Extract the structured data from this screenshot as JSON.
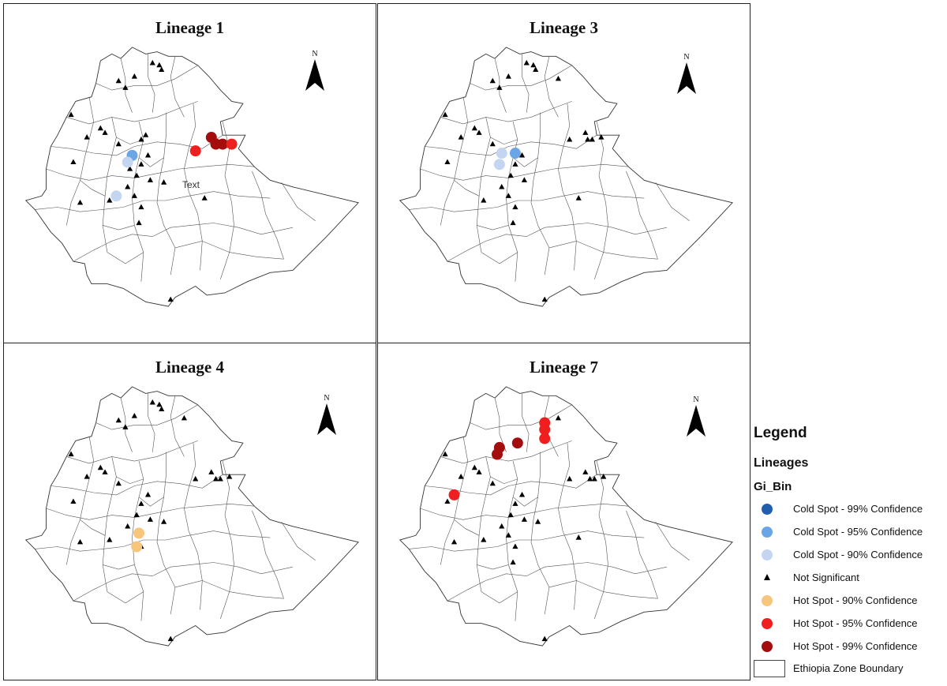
{
  "panels": [
    {
      "id": "p1",
      "title": "Lineage 1",
      "annotation": "Text",
      "points": [
        {
          "cls": "ns",
          "lon": 38.8,
          "lat": 14.2
        },
        {
          "cls": "ns",
          "lon": 39.2,
          "lat": 13.9
        },
        {
          "cls": "ns",
          "lon": 39.1,
          "lat": 14.1
        },
        {
          "cls": "ns",
          "lon": 37.3,
          "lat": 13.4
        },
        {
          "cls": "ns",
          "lon": 37.6,
          "lat": 13.1
        },
        {
          "cls": "ns",
          "lon": 38.0,
          "lat": 13.6
        },
        {
          "cls": "ns",
          "lon": 35.2,
          "lat": 11.9
        },
        {
          "cls": "ns",
          "lon": 36.5,
          "lat": 11.3
        },
        {
          "cls": "ns",
          "lon": 35.9,
          "lat": 10.9
        },
        {
          "cls": "ns",
          "lon": 36.7,
          "lat": 11.1
        },
        {
          "cls": "ns",
          "lon": 37.3,
          "lat": 10.6
        },
        {
          "cls": "ns",
          "lon": 38.5,
          "lat": 11.0
        },
        {
          "cls": "ns",
          "lon": 38.3,
          "lat": 10.8
        },
        {
          "cls": "ns",
          "lon": 35.3,
          "lat": 9.8
        },
        {
          "cls": "ns",
          "lon": 37.8,
          "lat": 9.5
        },
        {
          "cls": "ns",
          "lon": 38.1,
          "lat": 9.2
        },
        {
          "cls": "ns",
          "lon": 38.3,
          "lat": 9.7
        },
        {
          "cls": "ns",
          "lon": 38.7,
          "lat": 9.0
        },
        {
          "cls": "ns",
          "lon": 37.7,
          "lat": 8.7
        },
        {
          "cls": "ns",
          "lon": 38.0,
          "lat": 8.3
        },
        {
          "cls": "ns",
          "lon": 38.3,
          "lat": 7.8
        },
        {
          "cls": "ns",
          "lon": 36.9,
          "lat": 8.1
        },
        {
          "cls": "ns",
          "lon": 35.6,
          "lat": 8.0
        },
        {
          "cls": "ns",
          "lon": 39.3,
          "lat": 8.9
        },
        {
          "cls": "ns",
          "lon": 41.1,
          "lat": 8.2
        },
        {
          "cls": "ns",
          "lon": 38.2,
          "lat": 7.1
        },
        {
          "cls": "ns",
          "lon": 38.6,
          "lat": 10.1
        },
        {
          "cls": "ns",
          "lon": 39.6,
          "lat": 3.7
        },
        {
          "cls": "cold95",
          "lon": 37.9,
          "lat": 10.1
        },
        {
          "cls": "cold90",
          "lon": 37.7,
          "lat": 9.8
        },
        {
          "cls": "cold90",
          "lon": 37.2,
          "lat": 8.3
        },
        {
          "cls": "hot95",
          "lon": 40.7,
          "lat": 10.3
        },
        {
          "cls": "hot99",
          "lon": 41.4,
          "lat": 10.9
        },
        {
          "cls": "hot99",
          "lon": 41.6,
          "lat": 10.6
        },
        {
          "cls": "hot99",
          "lon": 41.9,
          "lat": 10.6
        },
        {
          "cls": "hot95",
          "lon": 42.3,
          "lat": 10.6
        }
      ]
    },
    {
      "id": "p3",
      "title": "Lineage 3",
      "points": [
        {
          "cls": "ns",
          "lon": 38.8,
          "lat": 14.2
        },
        {
          "cls": "ns",
          "lon": 39.2,
          "lat": 13.9
        },
        {
          "cls": "ns",
          "lon": 39.1,
          "lat": 14.1
        },
        {
          "cls": "ns",
          "lon": 37.3,
          "lat": 13.4
        },
        {
          "cls": "ns",
          "lon": 37.6,
          "lat": 13.1
        },
        {
          "cls": "ns",
          "lon": 38.0,
          "lat": 13.6
        },
        {
          "cls": "ns",
          "lon": 40.2,
          "lat": 13.5
        },
        {
          "cls": "ns",
          "lon": 35.2,
          "lat": 11.9
        },
        {
          "cls": "ns",
          "lon": 36.5,
          "lat": 11.3
        },
        {
          "cls": "ns",
          "lon": 35.9,
          "lat": 10.9
        },
        {
          "cls": "ns",
          "lon": 36.7,
          "lat": 11.1
        },
        {
          "cls": "ns",
          "lon": 37.3,
          "lat": 10.6
        },
        {
          "cls": "ns",
          "lon": 35.3,
          "lat": 9.8
        },
        {
          "cls": "ns",
          "lon": 38.1,
          "lat": 9.2
        },
        {
          "cls": "ns",
          "lon": 38.3,
          "lat": 9.7
        },
        {
          "cls": "ns",
          "lon": 38.7,
          "lat": 9.0
        },
        {
          "cls": "ns",
          "lon": 37.7,
          "lat": 8.7
        },
        {
          "cls": "ns",
          "lon": 38.0,
          "lat": 8.3
        },
        {
          "cls": "ns",
          "lon": 38.3,
          "lat": 7.8
        },
        {
          "cls": "ns",
          "lon": 36.9,
          "lat": 8.1
        },
        {
          "cls": "ns",
          "lon": 41.1,
          "lat": 8.2
        },
        {
          "cls": "ns",
          "lon": 38.2,
          "lat": 7.1
        },
        {
          "cls": "ns",
          "lon": 38.6,
          "lat": 10.1
        },
        {
          "cls": "ns",
          "lon": 40.7,
          "lat": 10.8
        },
        {
          "cls": "ns",
          "lon": 41.4,
          "lat": 11.1
        },
        {
          "cls": "ns",
          "lon": 41.5,
          "lat": 10.8
        },
        {
          "cls": "ns",
          "lon": 41.7,
          "lat": 10.8
        },
        {
          "cls": "ns",
          "lon": 42.1,
          "lat": 10.9
        },
        {
          "cls": "ns",
          "lon": 39.6,
          "lat": 3.7
        },
        {
          "cls": "cold90",
          "lon": 37.7,
          "lat": 10.2
        },
        {
          "cls": "cold95",
          "lon": 38.3,
          "lat": 10.2
        },
        {
          "cls": "cold90",
          "lon": 37.6,
          "lat": 9.7
        }
      ]
    },
    {
      "id": "p4",
      "title": "Lineage 4",
      "points": [
        {
          "cls": "ns",
          "lon": 38.8,
          "lat": 14.2
        },
        {
          "cls": "ns",
          "lon": 39.2,
          "lat": 13.9
        },
        {
          "cls": "ns",
          "lon": 39.1,
          "lat": 14.1
        },
        {
          "cls": "ns",
          "lon": 37.3,
          "lat": 13.4
        },
        {
          "cls": "ns",
          "lon": 37.6,
          "lat": 13.1
        },
        {
          "cls": "ns",
          "lon": 38.0,
          "lat": 13.6
        },
        {
          "cls": "ns",
          "lon": 40.2,
          "lat": 13.5
        },
        {
          "cls": "ns",
          "lon": 35.2,
          "lat": 11.9
        },
        {
          "cls": "ns",
          "lon": 36.5,
          "lat": 11.3
        },
        {
          "cls": "ns",
          "lon": 35.9,
          "lat": 10.9
        },
        {
          "cls": "ns",
          "lon": 36.7,
          "lat": 11.1
        },
        {
          "cls": "ns",
          "lon": 37.3,
          "lat": 10.6
        },
        {
          "cls": "ns",
          "lon": 35.3,
          "lat": 9.8
        },
        {
          "cls": "ns",
          "lon": 38.1,
          "lat": 9.2
        },
        {
          "cls": "ns",
          "lon": 38.3,
          "lat": 9.7
        },
        {
          "cls": "ns",
          "lon": 38.7,
          "lat": 9.0
        },
        {
          "cls": "ns",
          "lon": 37.7,
          "lat": 8.7
        },
        {
          "cls": "ns",
          "lon": 38.3,
          "lat": 7.8
        },
        {
          "cls": "ns",
          "lon": 36.9,
          "lat": 8.1
        },
        {
          "cls": "ns",
          "lon": 35.6,
          "lat": 8.0
        },
        {
          "cls": "ns",
          "lon": 39.3,
          "lat": 8.9
        },
        {
          "cls": "ns",
          "lon": 38.6,
          "lat": 10.1
        },
        {
          "cls": "ns",
          "lon": 40.7,
          "lat": 10.8
        },
        {
          "cls": "ns",
          "lon": 41.4,
          "lat": 11.1
        },
        {
          "cls": "ns",
          "lon": 41.6,
          "lat": 10.8
        },
        {
          "cls": "ns",
          "lon": 41.8,
          "lat": 10.8
        },
        {
          "cls": "ns",
          "lon": 42.2,
          "lat": 10.9
        },
        {
          "cls": "ns",
          "lon": 39.6,
          "lat": 3.7
        },
        {
          "cls": "hot90",
          "lon": 38.2,
          "lat": 8.4
        },
        {
          "cls": "hot90",
          "lon": 38.1,
          "lat": 7.8
        }
      ]
    },
    {
      "id": "p7",
      "title": "Lineage 7",
      "points": [
        {
          "cls": "ns",
          "lon": 40.2,
          "lat": 13.5
        },
        {
          "cls": "ns",
          "lon": 35.2,
          "lat": 11.9
        },
        {
          "cls": "ns",
          "lon": 36.5,
          "lat": 11.3
        },
        {
          "cls": "ns",
          "lon": 35.9,
          "lat": 10.9
        },
        {
          "cls": "ns",
          "lon": 36.7,
          "lat": 11.1
        },
        {
          "cls": "ns",
          "lon": 37.3,
          "lat": 10.6
        },
        {
          "cls": "ns",
          "lon": 35.3,
          "lat": 9.8
        },
        {
          "cls": "ns",
          "lon": 38.1,
          "lat": 9.2
        },
        {
          "cls": "ns",
          "lon": 38.3,
          "lat": 9.7
        },
        {
          "cls": "ns",
          "lon": 38.7,
          "lat": 9.0
        },
        {
          "cls": "ns",
          "lon": 37.7,
          "lat": 8.7
        },
        {
          "cls": "ns",
          "lon": 38.0,
          "lat": 8.3
        },
        {
          "cls": "ns",
          "lon": 38.3,
          "lat": 7.8
        },
        {
          "cls": "ns",
          "lon": 36.9,
          "lat": 8.1
        },
        {
          "cls": "ns",
          "lon": 35.6,
          "lat": 8.0
        },
        {
          "cls": "ns",
          "lon": 39.3,
          "lat": 8.9
        },
        {
          "cls": "ns",
          "lon": 41.1,
          "lat": 8.2
        },
        {
          "cls": "ns",
          "lon": 38.2,
          "lat": 7.1
        },
        {
          "cls": "ns",
          "lon": 38.6,
          "lat": 10.1
        },
        {
          "cls": "ns",
          "lon": 40.7,
          "lat": 10.8
        },
        {
          "cls": "ns",
          "lon": 41.4,
          "lat": 11.1
        },
        {
          "cls": "ns",
          "lon": 41.6,
          "lat": 10.8
        },
        {
          "cls": "ns",
          "lon": 41.8,
          "lat": 10.8
        },
        {
          "cls": "ns",
          "lon": 42.2,
          "lat": 10.9
        },
        {
          "cls": "ns",
          "lon": 39.6,
          "lat": 3.7
        },
        {
          "cls": "hot99",
          "lon": 37.6,
          "lat": 12.2
        },
        {
          "cls": "hot99",
          "lon": 37.5,
          "lat": 11.9
        },
        {
          "cls": "hot99",
          "lon": 38.4,
          "lat": 12.4
        },
        {
          "cls": "hot95",
          "lon": 39.6,
          "lat": 13.3
        },
        {
          "cls": "hot95",
          "lon": 39.6,
          "lat": 13.0
        },
        {
          "cls": "hot95",
          "lon": 39.6,
          "lat": 12.6
        },
        {
          "cls": "hot95",
          "lon": 35.6,
          "lat": 10.1
        }
      ]
    }
  ],
  "north_label": "N",
  "legend": {
    "title": "Legend",
    "subtitle": "Lineages",
    "field": "Gi_Bin",
    "items": [
      {
        "cls": "cold99",
        "label": "Cold Spot - 99% Confidence",
        "color": "#1f5fae"
      },
      {
        "cls": "cold95",
        "label": "Cold Spot - 95% Confidence",
        "color": "#6aa6e6"
      },
      {
        "cls": "cold90",
        "label": "Cold Spot - 90% Confidence",
        "color": "#c3d5f0"
      },
      {
        "cls": "ns",
        "label": "Not Significant",
        "color": "#000000"
      },
      {
        "cls": "hot90",
        "label": "Hot Spot - 90% Confidence",
        "color": "#f7c67c"
      },
      {
        "cls": "hot95",
        "label": "Hot Spot - 95% Confidence",
        "color": "#ef1f1f"
      },
      {
        "cls": "hot99",
        "label": "Hot Spot - 99% Confidence",
        "color": "#a30d0d"
      }
    ],
    "boundary_label": "Ethiopia Zone Boundary"
  }
}
